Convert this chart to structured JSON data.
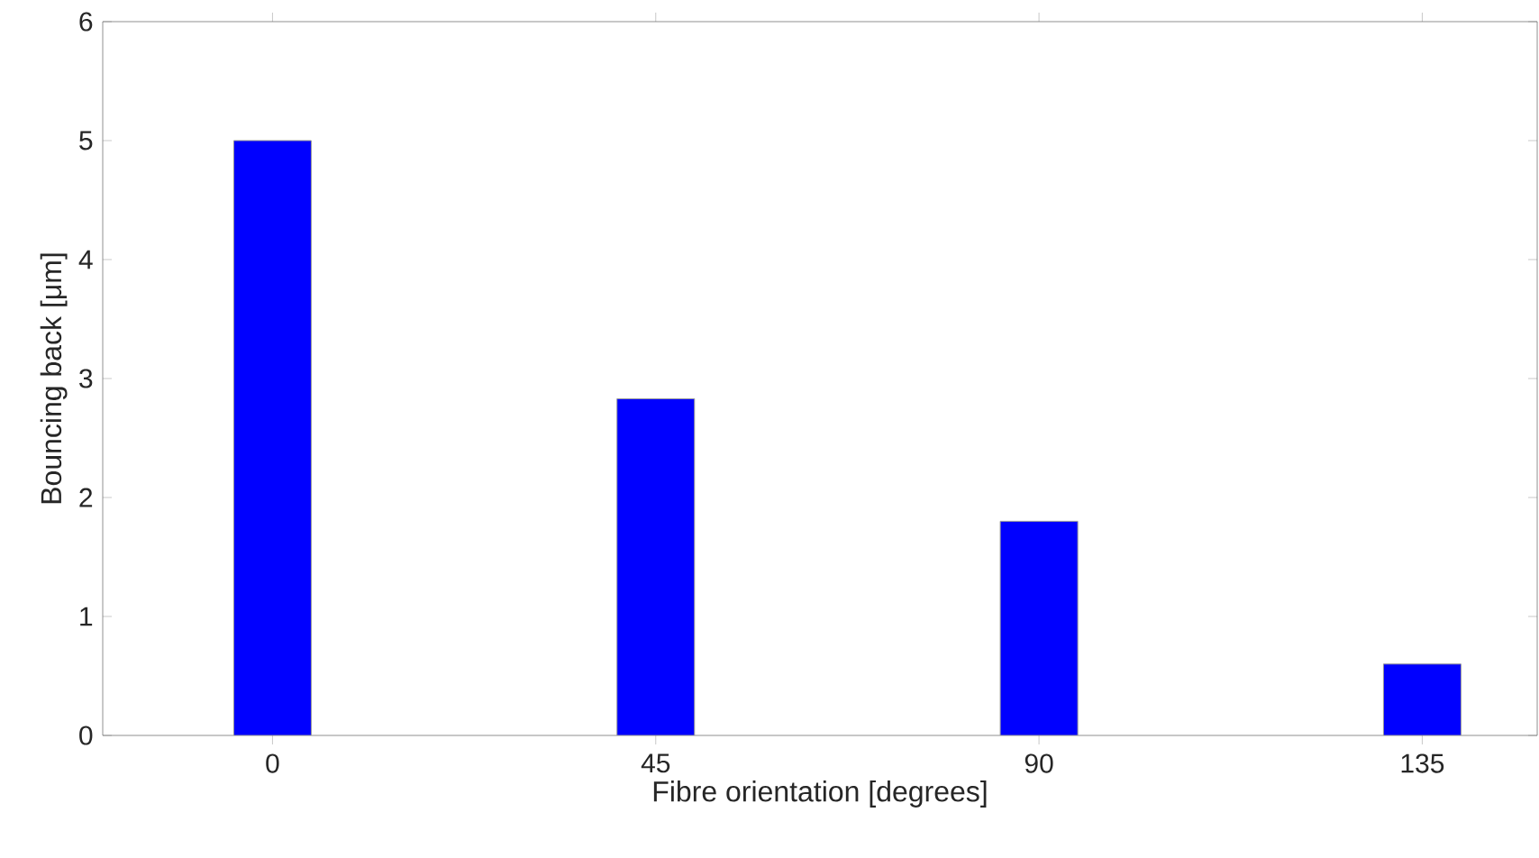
{
  "chart_data": {
    "type": "bar",
    "xlabel": "Fibre orientation [degrees]",
    "ylabel": "Bouncing back [μm]",
    "categories": [
      "0",
      "45",
      "90",
      "135"
    ],
    "values": [
      5.0,
      2.83,
      1.8,
      0.6
    ],
    "color": "#0000ff",
    "ylim": [
      0,
      6
    ],
    "yticks": [
      0,
      1,
      2,
      3,
      4,
      5,
      6
    ],
    "grid": false
  }
}
